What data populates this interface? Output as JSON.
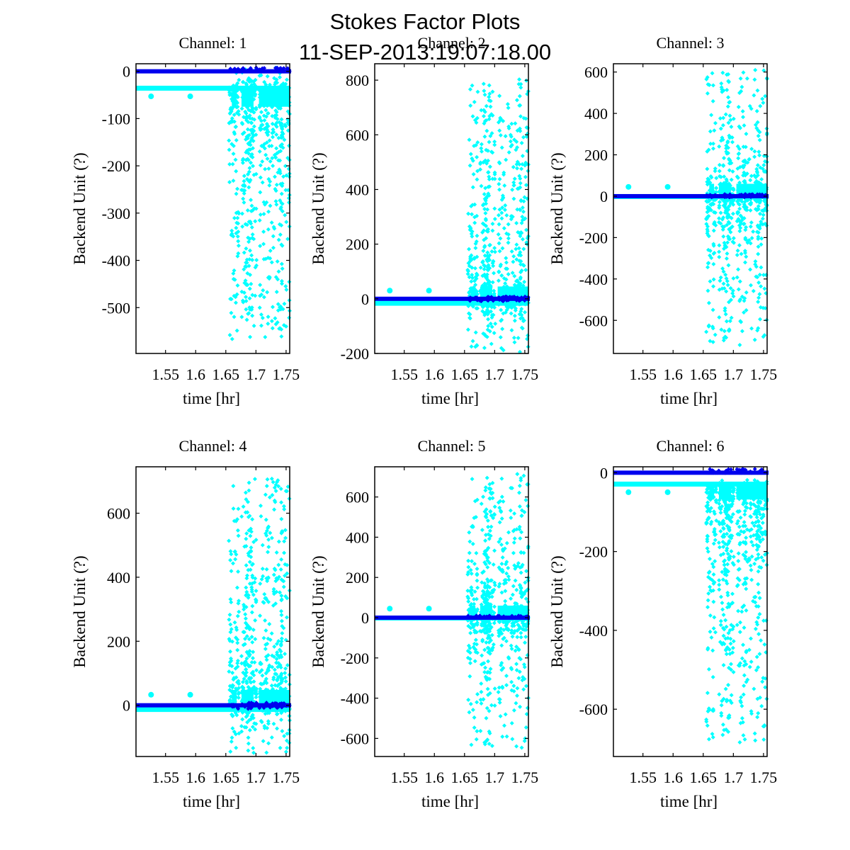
{
  "figure": {
    "title_line1": "Stokes Factor Plots",
    "title_line2": "11-SEP-2013:19:07:18.00",
    "colors": {
      "series_dark": "#0000ee",
      "series_light": "#00ffff",
      "axes": "#000000"
    }
  },
  "chart_data": [
    {
      "type": "scatter",
      "title": "Channel: 1",
      "xlabel": "time [hr]",
      "ylabel": "Backend Unit (?)",
      "xlim": [
        1.501,
        1.756
      ],
      "ylim": [
        -597,
        16
      ],
      "xticks": [
        1.55,
        1.6,
        1.65,
        1.7,
        1.75
      ],
      "xtick_labels": [
        "1.55",
        "1.6",
        "1.65",
        "1.7",
        "1.75"
      ],
      "yticks": [
        0,
        -100,
        -200,
        -300,
        -400,
        -500
      ],
      "ytick_labels": [
        "0",
        "-100",
        "-200",
        "-300",
        "-400",
        "-500"
      ],
      "series": [
        {
          "name": "dark",
          "color": "#0000ee",
          "baseline": 0,
          "burst_up": 8,
          "burst_down": 0
        },
        {
          "name": "light",
          "color": "#00ffff",
          "baseline": -35,
          "burst_up": 10,
          "burst_down": -570
        }
      ]
    },
    {
      "type": "scatter",
      "title": "Channel: 2",
      "xlabel": "time [hr]",
      "ylabel": "Backend Unit (?)",
      "xlim": [
        1.501,
        1.756
      ],
      "ylim": [
        -200,
        860
      ],
      "xticks": [
        1.55,
        1.6,
        1.65,
        1.7,
        1.75
      ],
      "xtick_labels": [
        "1.55",
        "1.6",
        "1.65",
        "1.7",
        "1.75"
      ],
      "yticks": [
        800,
        600,
        400,
        200,
        0,
        -200
      ],
      "ytick_labels": [
        "800",
        "600",
        "400",
        "200",
        "0",
        "-200"
      ],
      "series": [
        {
          "name": "dark",
          "color": "#0000ee",
          "baseline": 0,
          "burst_up": 8,
          "burst_down": -10
        },
        {
          "name": "light",
          "color": "#00ffff",
          "baseline": -15,
          "burst_up": 810,
          "burst_down": -195
        }
      ]
    },
    {
      "type": "scatter",
      "title": "Channel: 3",
      "xlabel": "time [hr]",
      "ylabel": "Backend Unit (?)",
      "xlim": [
        1.501,
        1.756
      ],
      "ylim": [
        -760,
        640
      ],
      "xticks": [
        1.55,
        1.6,
        1.65,
        1.7,
        1.75
      ],
      "xtick_labels": [
        "1.55",
        "1.6",
        "1.65",
        "1.7",
        "1.75"
      ],
      "yticks": [
        600,
        400,
        200,
        0,
        -200,
        -400,
        -600
      ],
      "ytick_labels": [
        "600",
        "400",
        "200",
        "0",
        "-200",
        "-400",
        "-600"
      ],
      "series": [
        {
          "name": "dark",
          "color": "#0000ee",
          "baseline": 0,
          "burst_up": 10,
          "burst_down": -5
        },
        {
          "name": "light",
          "color": "#00ffff",
          "baseline": 0,
          "burst_up": 615,
          "burst_down": -720
        }
      ]
    },
    {
      "type": "scatter",
      "title": "Channel: 4",
      "xlabel": "time [hr]",
      "ylabel": "Backend Unit (?)",
      "xlim": [
        1.501,
        1.756
      ],
      "ylim": [
        -160,
        745
      ],
      "xticks": [
        1.55,
        1.6,
        1.65,
        1.7,
        1.75
      ],
      "xtick_labels": [
        "1.55",
        "1.6",
        "1.65",
        "1.7",
        "1.75"
      ],
      "yticks": [
        600,
        400,
        200,
        0
      ],
      "ytick_labels": [
        "600",
        "400",
        "200",
        "0"
      ],
      "series": [
        {
          "name": "dark",
          "color": "#0000ee",
          "baseline": 0,
          "burst_up": 8,
          "burst_down": -12
        },
        {
          "name": "light",
          "color": "#00ffff",
          "baseline": -12,
          "burst_up": 715,
          "burst_down": -150
        }
      ]
    },
    {
      "type": "scatter",
      "title": "Channel: 5",
      "xlabel": "time [hr]",
      "ylabel": "Backend Unit (?)",
      "xlim": [
        1.501,
        1.756
      ],
      "ylim": [
        -690,
        750
      ],
      "xticks": [
        1.55,
        1.6,
        1.65,
        1.7,
        1.75
      ],
      "xtick_labels": [
        "1.55",
        "1.6",
        "1.65",
        "1.7",
        "1.75"
      ],
      "yticks": [
        600,
        400,
        200,
        0,
        -200,
        -400,
        -600
      ],
      "ytick_labels": [
        "600",
        "400",
        "200",
        "0",
        "-200",
        "-400",
        "-600"
      ],
      "series": [
        {
          "name": "dark",
          "color": "#0000ee",
          "baseline": 0,
          "burst_up": 10,
          "burst_down": 0
        },
        {
          "name": "light",
          "color": "#00ffff",
          "baseline": 0,
          "burst_up": 715,
          "burst_down": -650
        }
      ]
    },
    {
      "type": "scatter",
      "title": "Channel: 6",
      "xlabel": "time [hr]",
      "ylabel": "Backend Unit (?)",
      "xlim": [
        1.501,
        1.756
      ],
      "ylim": [
        -720,
        15
      ],
      "xticks": [
        1.55,
        1.6,
        1.65,
        1.7,
        1.75
      ],
      "xtick_labels": [
        "1.55",
        "1.6",
        "1.65",
        "1.7",
        "1.75"
      ],
      "yticks": [
        0,
        -200,
        -400,
        -600
      ],
      "ytick_labels": [
        "0",
        "-200",
        "-400",
        "-600"
      ],
      "series": [
        {
          "name": "dark",
          "color": "#0000ee",
          "baseline": 0,
          "burst_up": 10,
          "burst_down": 0
        },
        {
          "name": "light",
          "color": "#00ffff",
          "baseline": -28,
          "burst_up": -18,
          "burst_down": -685
        }
      ]
    }
  ]
}
